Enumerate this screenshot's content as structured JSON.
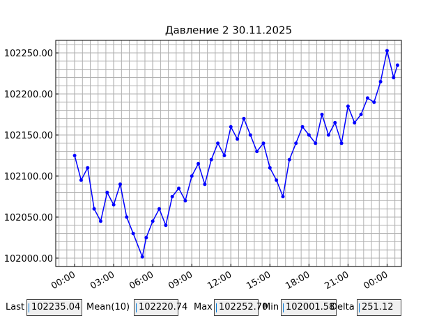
{
  "chart_data": {
    "type": "line",
    "title": "Давление 2 30.11.2025",
    "x": [
      0,
      0.5,
      1,
      1.5,
      2,
      2.5,
      3,
      3.5,
      4,
      4.5,
      5.2,
      5.5,
      6,
      6.5,
      7,
      7.5,
      8,
      8.5,
      9,
      9.5,
      10,
      10.5,
      11,
      11.5,
      12,
      12.5,
      13,
      13.5,
      14,
      14.5,
      15,
      15.5,
      16,
      16.5,
      17,
      17.5,
      18,
      18.5,
      19,
      19.5,
      20,
      20.5,
      21,
      21.5,
      22,
      22.5,
      23,
      23.5,
      24,
      24.5,
      24.8
    ],
    "series": [
      {
        "name": "Давление 2",
        "color": "#0000ff",
        "values": [
          102125,
          102095,
          102110,
          102060,
          102045,
          102080,
          102065,
          102090,
          102050,
          102030,
          102001.58,
          102025,
          102045,
          102060,
          102040,
          102075,
          102085,
          102070,
          102100,
          102115,
          102090,
          102120,
          102140,
          102125,
          102160,
          102145,
          102170,
          102150,
          102130,
          102140,
          102110,
          102095,
          102075,
          102120,
          102140,
          102160,
          102150,
          102140,
          102175,
          102150,
          102165,
          102140,
          102185,
          102165,
          102175,
          102195,
          102190,
          102215,
          102252.7,
          102220,
          102235.04
        ]
      }
    ],
    "xlim": [
      -1.45,
      25.1
    ],
    "xticks": [
      {
        "value": 0,
        "label": "00:00"
      },
      {
        "value": 3,
        "label": "03:00"
      },
      {
        "value": 6,
        "label": "06:00"
      },
      {
        "value": 9,
        "label": "09:00"
      },
      {
        "value": 12,
        "label": "12:00"
      },
      {
        "value": 15,
        "label": "15:00"
      },
      {
        "value": 18,
        "label": "18:00"
      },
      {
        "value": 21,
        "label": "21:00"
      },
      {
        "value": 24,
        "label": "00:00"
      }
    ],
    "ylim": [
      101989.8,
      102265.3
    ],
    "yticks": [
      {
        "value": 102000,
        "label": "102000.00"
      },
      {
        "value": 102050,
        "label": "102050.00"
      },
      {
        "value": 102100,
        "label": "102100.00"
      },
      {
        "value": 102150,
        "label": "102150.00"
      },
      {
        "value": 102200,
        "label": "102200.00"
      },
      {
        "value": 102250,
        "label": "102250.00"
      }
    ],
    "grid": true,
    "minor_grid": true
  },
  "stats": [
    {
      "label": "Last",
      "value": "102235.04"
    },
    {
      "label": "Mean(10)",
      "value": "102220.74"
    },
    {
      "label": "Max",
      "value": "102252.70"
    },
    {
      "label": "Min",
      "value": "102001.58"
    },
    {
      "label": "Delta",
      "value": "251.12"
    }
  ]
}
